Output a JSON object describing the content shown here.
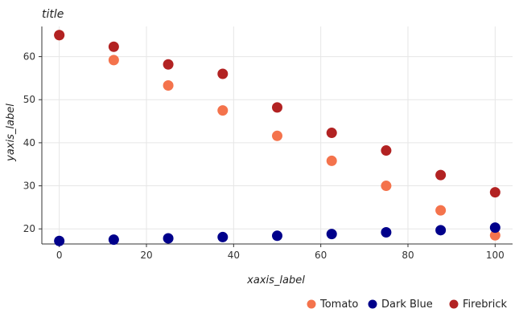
{
  "chart_data": {
    "type": "scatter",
    "title": "title",
    "xlabel": "xaxis_label",
    "ylabel": "yaxis_label",
    "xlim": [
      -4,
      104
    ],
    "ylim": [
      16.5,
      67
    ],
    "xticks": [
      0,
      20,
      40,
      60,
      80,
      100
    ],
    "yticks": [
      20,
      30,
      40,
      50,
      60
    ],
    "grid": true,
    "legend_position": "bottom",
    "series": [
      {
        "name": "Tomato",
        "color": "#f4734c",
        "x": [
          0,
          12.5,
          25,
          37.5,
          50,
          62.5,
          75,
          87.5,
          100
        ],
        "y": [
          65,
          59.2,
          53.3,
          47.5,
          41.6,
          35.8,
          30,
          24.3,
          18.5
        ]
      },
      {
        "name": "Dark Blue",
        "color": "#00008b",
        "x": [
          0,
          12.5,
          25,
          37.5,
          50,
          62.5,
          75,
          87.5,
          100
        ],
        "y": [
          17.2,
          17.5,
          17.8,
          18.1,
          18.4,
          18.8,
          19.2,
          19.7,
          20.3
        ]
      },
      {
        "name": "Firebrick",
        "color": "#b22222",
        "x": [
          0,
          12.5,
          25,
          37.5,
          50,
          62.5,
          75,
          87.5,
          100
        ],
        "y": [
          65,
          62.3,
          58.2,
          56,
          48.2,
          42.3,
          38.2,
          32.5,
          28.5
        ]
      }
    ]
  }
}
